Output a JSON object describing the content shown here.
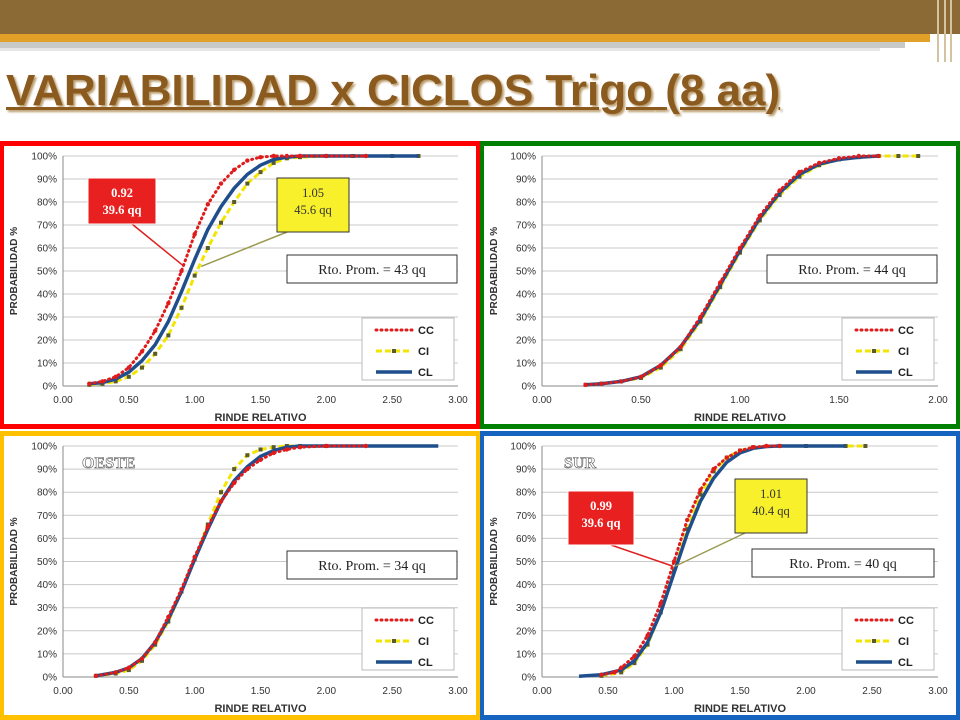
{
  "slide_title": {
    "underlined": "VARIABILIDAD x CICLOS Trigo",
    "rest": "(8 aa)"
  },
  "colors": {
    "cc": "#e01b1b",
    "ci": "#f2e600",
    "cl": "#1f4e8c",
    "panel_red": "#ff0000",
    "panel_green": "#008000",
    "panel_yellow": "#ffc000",
    "panel_blue": "#1565c0"
  },
  "chart_data": [
    {
      "type": "line",
      "panel_color": "#ff0000",
      "xlabel": "RINDE RELATIVO",
      "ylabel": "PROBABILIDAD %",
      "xlim": [
        0,
        3
      ],
      "ylim": [
        0,
        100
      ],
      "x_ticks": [
        "0.00",
        "0.50",
        "1.00",
        "1.50",
        "2.00",
        "2.50",
        "3.00"
      ],
      "y_ticks": [
        "0%",
        "10%",
        "20%",
        "30%",
        "40%",
        "50%",
        "60%",
        "70%",
        "80%",
        "90%",
        "100%"
      ],
      "grid": true,
      "legend_position": "bottom-right",
      "series": [
        {
          "name": "CC",
          "style": "dots",
          "color": "#e01b1b",
          "x": [
            0.2,
            0.3,
            0.4,
            0.5,
            0.6,
            0.7,
            0.8,
            0.9,
            1.0,
            1.1,
            1.2,
            1.3,
            1.4,
            1.5,
            1.6,
            1.7,
            1.8,
            2.0,
            2.3
          ],
          "y": [
            1,
            2,
            4,
            8,
            15,
            24,
            36,
            50,
            66,
            79,
            88,
            94,
            98,
            99.5,
            100,
            100,
            100,
            100,
            100
          ]
        },
        {
          "name": "CI",
          "style": "dashed-markers",
          "color": "#f2e600",
          "x": [
            0.2,
            0.3,
            0.4,
            0.5,
            0.6,
            0.7,
            0.8,
            0.9,
            1.0,
            1.1,
            1.2,
            1.3,
            1.4,
            1.5,
            1.6,
            1.7,
            1.8,
            2.0,
            2.2,
            2.5,
            2.7
          ],
          "y": [
            0.5,
            1,
            2,
            4,
            8,
            14,
            22,
            34,
            48,
            60,
            71,
            80,
            88,
            93,
            97,
            99,
            99.5,
            100,
            100,
            100,
            100
          ]
        },
        {
          "name": "CL",
          "style": "solid",
          "color": "#1f4e8c",
          "x": [
            0.2,
            0.3,
            0.4,
            0.5,
            0.6,
            0.7,
            0.8,
            0.9,
            1.0,
            1.1,
            1.2,
            1.3,
            1.4,
            1.5,
            1.6,
            1.7,
            1.8,
            2.0,
            2.2,
            2.5,
            2.7
          ],
          "y": [
            1,
            1.5,
            3,
            6,
            11,
            18,
            28,
            41,
            55,
            68,
            78,
            86,
            92,
            96,
            98.5,
            99.5,
            100,
            100,
            100,
            100,
            100
          ]
        }
      ],
      "callouts": [
        {
          "lines": [
            "0.92",
            "39.6 qq"
          ],
          "style": "red"
        },
        {
          "lines": [
            "1.05",
            "45.6 qq"
          ],
          "style": "yellow"
        }
      ],
      "label_box": "Rto. Prom. = 43 qq",
      "region_label": ""
    },
    {
      "type": "line",
      "panel_color": "#008000",
      "xlabel": "RINDE RELATIVO",
      "ylabel": "PROBABILIDAD %",
      "xlim": [
        0,
        2
      ],
      "ylim": [
        0,
        100
      ],
      "x_ticks": [
        "0.00",
        "0.50",
        "1.00",
        "1.50",
        "2.00"
      ],
      "y_ticks": [
        "0%",
        "10%",
        "20%",
        "30%",
        "40%",
        "50%",
        "60%",
        "70%",
        "80%",
        "90%",
        "100%"
      ],
      "grid": true,
      "legend_position": "bottom-right",
      "series": [
        {
          "name": "CC",
          "style": "dots",
          "color": "#e01b1b",
          "x": [
            0.22,
            0.3,
            0.4,
            0.5,
            0.6,
            0.7,
            0.8,
            0.9,
            1.0,
            1.1,
            1.2,
            1.3,
            1.4,
            1.5,
            1.6,
            1.7
          ],
          "y": [
            0.5,
            1,
            2,
            4,
            9,
            17,
            30,
            45,
            60,
            74,
            85,
            93,
            97,
            99,
            100,
            100
          ]
        },
        {
          "name": "CI",
          "style": "dashed-markers",
          "color": "#f2e600",
          "x": [
            0.22,
            0.3,
            0.4,
            0.5,
            0.6,
            0.7,
            0.8,
            0.9,
            1.0,
            1.1,
            1.2,
            1.3,
            1.4,
            1.5,
            1.6,
            1.7,
            1.8,
            1.9
          ],
          "y": [
            0.5,
            1,
            2,
            3.5,
            8,
            16,
            28,
            43,
            58,
            72,
            83,
            91,
            96,
            98.5,
            99.5,
            100,
            100,
            100
          ]
        },
        {
          "name": "CL",
          "style": "solid",
          "color": "#1f4e8c",
          "x": [
            0.22,
            0.3,
            0.4,
            0.5,
            0.6,
            0.7,
            0.8,
            0.9,
            1.0,
            1.1,
            1.2,
            1.3,
            1.4,
            1.5,
            1.6,
            1.7
          ],
          "y": [
            0.5,
            1,
            2,
            4,
            9,
            17,
            29,
            44,
            59,
            73,
            84,
            92,
            96.5,
            98.5,
            99.5,
            100
          ]
        }
      ],
      "callouts": [],
      "label_box": "Rto. Prom. = 44 qq",
      "region_label": ""
    },
    {
      "type": "line",
      "panel_color": "#ffc000",
      "xlabel": "RINDE RELATIVO",
      "ylabel": "PROBABILIDAD %",
      "xlim": [
        0,
        3
      ],
      "ylim": [
        0,
        100
      ],
      "x_ticks": [
        "0.00",
        "0.50",
        "1.00",
        "1.50",
        "2.00",
        "2.50",
        "3.00"
      ],
      "y_ticks": [
        "0%",
        "10%",
        "20%",
        "30%",
        "40%",
        "50%",
        "60%",
        "70%",
        "80%",
        "90%",
        "100%"
      ],
      "grid": true,
      "legend_position": "bottom-right",
      "series": [
        {
          "name": "CC",
          "style": "dots",
          "color": "#e01b1b",
          "x": [
            0.25,
            0.4,
            0.5,
            0.6,
            0.7,
            0.8,
            0.9,
            1.0,
            1.1,
            1.2,
            1.3,
            1.4,
            1.5,
            1.6,
            1.7,
            1.8,
            2.0,
            2.3
          ],
          "y": [
            0.5,
            2,
            4,
            8,
            15,
            26,
            38,
            52,
            65,
            76,
            84,
            90,
            94,
            97,
            98.5,
            99.5,
            100,
            100
          ]
        },
        {
          "name": "CI",
          "style": "dashed-markers",
          "color": "#f2e600",
          "x": [
            0.25,
            0.4,
            0.5,
            0.6,
            0.7,
            0.8,
            0.9,
            1.0,
            1.1,
            1.2,
            1.3,
            1.4,
            1.5,
            1.6,
            1.7,
            1.8,
            2.0
          ],
          "y": [
            0.5,
            1.5,
            3,
            7,
            14,
            24,
            37,
            51,
            66,
            80,
            90,
            96,
            98.5,
            99.5,
            100,
            100,
            100
          ]
        },
        {
          "name": "CL",
          "style": "solid",
          "color": "#1f4e8c",
          "x": [
            0.25,
            0.4,
            0.5,
            0.6,
            0.7,
            0.8,
            0.9,
            1.0,
            1.1,
            1.2,
            1.3,
            1.4,
            1.5,
            1.6,
            1.7,
            1.8,
            2.0,
            2.5,
            2.85
          ],
          "y": [
            0.5,
            2,
            4,
            8,
            15,
            25,
            37,
            51,
            64,
            76,
            85,
            91,
            95.5,
            98,
            99.5,
            100,
            100,
            100,
            100
          ]
        }
      ],
      "callouts": [],
      "label_box": "Rto. Prom. = 34 qq",
      "region_label": "OESTE"
    },
    {
      "type": "line",
      "panel_color": "#1565c0",
      "xlabel": "RINDE RELATIVO",
      "ylabel": "PROBABILIDAD %",
      "xlim": [
        0,
        3
      ],
      "ylim": [
        0,
        100
      ],
      "x_ticks": [
        "0.00",
        "0.50",
        "1.00",
        "1.50",
        "2.00",
        "2.50",
        "3.00"
      ],
      "y_ticks": [
        "0%",
        "10%",
        "20%",
        "30%",
        "40%",
        "50%",
        "60%",
        "70%",
        "80%",
        "90%",
        "100%"
      ],
      "grid": true,
      "legend_position": "bottom-right",
      "series": [
        {
          "name": "CC",
          "style": "dots",
          "color": "#e01b1b",
          "x": [
            0.45,
            0.55,
            0.6,
            0.7,
            0.8,
            0.9,
            1.0,
            1.1,
            1.2,
            1.3,
            1.4,
            1.5,
            1.6,
            1.7,
            1.8
          ],
          "y": [
            1,
            2,
            4,
            9,
            18,
            32,
            50,
            68,
            81,
            90,
            95,
            98,
            99.5,
            100,
            100
          ]
        },
        {
          "name": "CI",
          "style": "dashed-markers",
          "color": "#f2e600",
          "x": [
            0.45,
            0.6,
            0.7,
            0.8,
            0.9,
            1.0,
            1.1,
            1.2,
            1.3,
            1.4,
            1.5,
            1.6,
            1.8,
            2.0,
            2.3,
            2.45
          ],
          "y": [
            0.5,
            2,
            6,
            14,
            28,
            46,
            64,
            79,
            89,
            95,
            98,
            99.5,
            100,
            100,
            100,
            100
          ]
        },
        {
          "name": "CL",
          "style": "solid",
          "color": "#1f4e8c",
          "x": [
            0.28,
            0.45,
            0.6,
            0.7,
            0.8,
            0.9,
            1.0,
            1.1,
            1.2,
            1.3,
            1.4,
            1.5,
            1.6,
            1.7,
            1.8,
            2.0,
            2.3
          ],
          "y": [
            0.3,
            1,
            3,
            7,
            15,
            28,
            45,
            62,
            76,
            86,
            93,
            97,
            99,
            99.8,
            100,
            100,
            100
          ]
        }
      ],
      "callouts": [
        {
          "lines": [
            "0.99",
            "39.6 qq"
          ],
          "style": "red"
        },
        {
          "lines": [
            "1.01",
            "40.4 qq"
          ],
          "style": "yellow"
        }
      ],
      "label_box": "Rto. Prom. = 40  qq",
      "region_label": "SUR"
    }
  ]
}
